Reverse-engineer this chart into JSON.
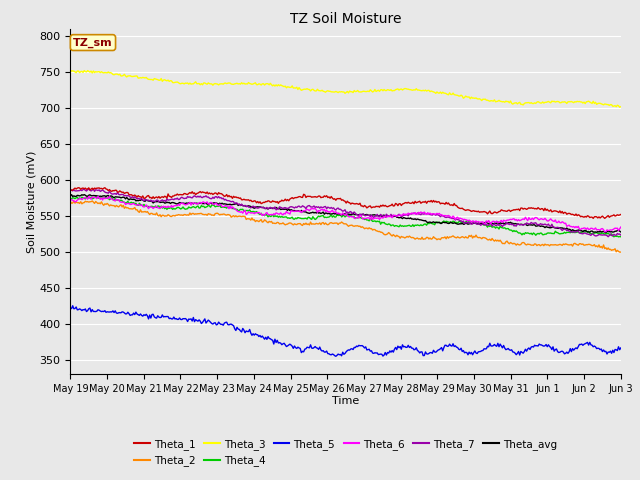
{
  "title": "TZ Soil Moisture",
  "ylabel": "Soil Moisture (mV)",
  "xlabel": "Time",
  "annotation": "TZ_sm",
  "ylim": [
    330,
    810
  ],
  "yticks": [
    350,
    400,
    450,
    500,
    550,
    600,
    650,
    700,
    750,
    800
  ],
  "x_labels": [
    "May 19",
    "May 20",
    "May 21",
    "May 22",
    "May 23",
    "May 24",
    "May 25",
    "May 26",
    "May 27",
    "May 28",
    "May 29",
    "May 30",
    "May 31",
    "Jun 1",
    "Jun 2",
    "Jun 3"
  ],
  "n_points": 480,
  "colors": {
    "Theta_1": "#cc0000",
    "Theta_2": "#ff8800",
    "Theta_3": "#ffff00",
    "Theta_4": "#00cc00",
    "Theta_5": "#0000ee",
    "Theta_6": "#ff00ff",
    "Theta_7": "#9900aa",
    "Theta_avg": "#000000"
  },
  "bg_color": "#e8e8e8",
  "plot_bg": "#e8e8e8",
  "grid_color": "#ffffff",
  "legend_order_row1": [
    "Theta_1",
    "Theta_2",
    "Theta_3",
    "Theta_4",
    "Theta_5",
    "Theta_6"
  ],
  "legend_order_row2": [
    "Theta_7",
    "Theta_avg"
  ]
}
